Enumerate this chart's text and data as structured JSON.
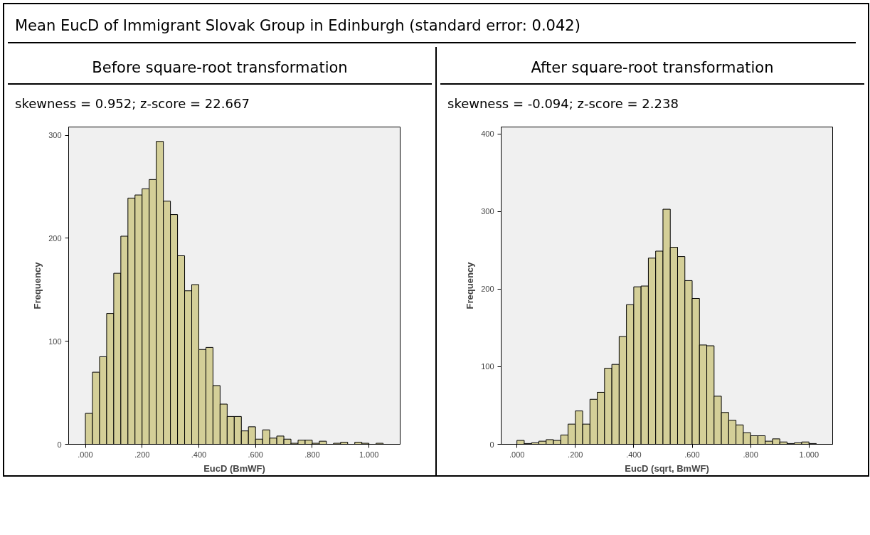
{
  "chart_data": [
    {
      "type": "histogram",
      "title": "Before square-root transformation",
      "subtitle": "skewness = 0.952; z-score = 22.667",
      "annotations": [
        "Mean EucD of Immigrant Slovak Group in Edinburgh (standard error: 0.042)"
      ],
      "xlabel": "EucD (BmWF)",
      "ylabel": "Frequency",
      "color": "#d4cf98",
      "bins": [
        0,
        0.025,
        0.05,
        0.075,
        0.1,
        0.125,
        0.15,
        0.175,
        0.2,
        0.225,
        0.25,
        0.275,
        0.3,
        0.325,
        0.35,
        0.375,
        0.4,
        0.425,
        0.45,
        0.475,
        0.5,
        0.525,
        0.55,
        0.575,
        0.6,
        0.625,
        0.65,
        0.675,
        0.7,
        0.725,
        0.75,
        0.775,
        0.8,
        0.825,
        0.85,
        0.875,
        0.9,
        0.925,
        0.95,
        0.975,
        1.0,
        1.025,
        1.05
      ],
      "values": [
        30,
        70,
        85,
        127,
        166,
        202,
        239,
        242,
        248,
        257,
        294,
        236,
        223,
        183,
        149,
        155,
        92,
        94,
        57,
        39,
        27,
        27,
        13,
        17,
        5,
        14,
        6,
        8,
        5,
        1,
        4,
        4,
        1,
        3,
        0,
        1,
        2,
        0,
        2,
        1,
        0,
        1
      ],
      "xlim": [
        -0.059,
        1.11
      ],
      "ylim": [
        0,
        308
      ],
      "xticks": [
        {
          "value": 0,
          "label": ".000"
        },
        {
          "value": 0.2,
          "label": ".200"
        },
        {
          "value": 0.4,
          "label": ".400"
        },
        {
          "value": 0.6,
          "label": ".600"
        },
        {
          "value": 0.8,
          "label": ".800"
        },
        {
          "value": 1.0,
          "label": "1.000"
        }
      ],
      "yticks": [
        0,
        100,
        200,
        300
      ],
      "grid": false
    },
    {
      "type": "histogram",
      "title": "After square-root transformation",
      "subtitle": "skewness = -0.094; z-score = 2.238",
      "xlabel": "EucD (sqrt, BmWF)",
      "ylabel": "Frequency",
      "color": "#d4cf98",
      "bins": [
        0,
        0.025,
        0.05,
        0.075,
        0.1,
        0.125,
        0.15,
        0.175,
        0.2,
        0.225,
        0.25,
        0.275,
        0.3,
        0.325,
        0.35,
        0.375,
        0.4,
        0.425,
        0.45,
        0.475,
        0.5,
        0.525,
        0.55,
        0.575,
        0.6,
        0.625,
        0.65,
        0.675,
        0.7,
        0.725,
        0.75,
        0.775,
        0.8,
        0.825,
        0.85,
        0.875,
        0.9,
        0.925,
        0.95,
        0.975,
        1.0,
        1.025
      ],
      "values": [
        5,
        1,
        2,
        4,
        6,
        5,
        12,
        26,
        43,
        26,
        58,
        67,
        98,
        103,
        139,
        180,
        203,
        204,
        240,
        249,
        303,
        254,
        242,
        211,
        188,
        128,
        127,
        62,
        41,
        31,
        25,
        15,
        11,
        11,
        4,
        7,
        3,
        1,
        2,
        3,
        1
      ],
      "xlim": [
        -0.054,
        1.081
      ],
      "ylim": [
        0,
        409
      ],
      "xticks": [
        {
          "value": 0,
          "label": ".000"
        },
        {
          "value": 0.2,
          "label": ".200"
        },
        {
          "value": 0.4,
          "label": ".400"
        },
        {
          "value": 0.6,
          "label": ".600"
        },
        {
          "value": 0.8,
          "label": ".800"
        },
        {
          "value": 1.0,
          "label": "1.000"
        }
      ],
      "yticks": [
        0,
        100,
        200,
        300,
        400
      ],
      "grid": false
    }
  ]
}
